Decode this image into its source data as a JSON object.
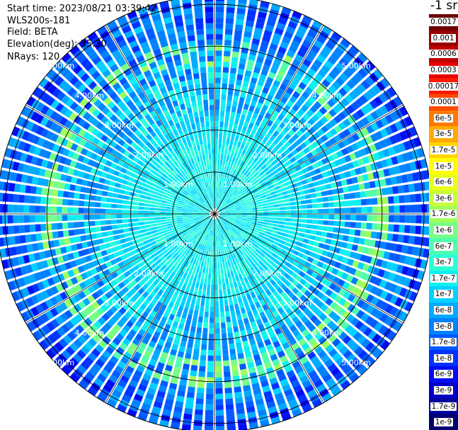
{
  "header": {
    "start_time": "Start time: 2023/08/21 03:39:42",
    "instrument": "WLS200s-181",
    "field": "Field: BETA",
    "elevation": "Elevation(deg): 35.30",
    "nrays": "NRays: 120"
  },
  "colorbar": {
    "unit": "-1 sr",
    "labels": [
      "0.0017",
      "0.001",
      "0.0006",
      "0.0003",
      "0.00017",
      "0.0001",
      "6e-5",
      "3e-5",
      "1.7e-5",
      "1e-5",
      "6e-6",
      "3e-6",
      "1.7e-6",
      "1e-6",
      "6e-7",
      "3e-7",
      "1.7e-7",
      "1e-7",
      "6e-8",
      "3e-8",
      "1.7e-8",
      "1e-8",
      "6e-9",
      "3e-9",
      "1.7e-9",
      "1e-9"
    ],
    "colors": [
      "#6e0000",
      "#980000",
      "#c00000",
      "#e80000",
      "#ff1a00",
      "#ff4a00",
      "#ff7a00",
      "#ffaa00",
      "#ffd400",
      "#ffff00",
      "#e8ff18",
      "#c8ff38",
      "#a0ff5e",
      "#78ff86",
      "#50ffae",
      "#2cffd6",
      "#10f0f0",
      "#00d2ff",
      "#00aaff",
      "#0082ff",
      "#005aff",
      "#0032ff",
      "#000cf4",
      "#0000c8",
      "#00009c",
      "#000070"
    ]
  },
  "chart_data": {
    "type": "ppi_polar",
    "title": "",
    "field": "BETA",
    "unit": "sr-1",
    "rays": 120,
    "elevation_deg": 35.3,
    "range_ring_labels_km": [
      "1.00km",
      "2.00km",
      "3.00km",
      "4.00km",
      "5.00km"
    ],
    "range_rings_km": [
      1,
      2,
      3,
      4,
      5
    ],
    "max_range_km": 5.2,
    "radial_lines_deg": [
      0,
      30,
      60,
      90,
      120,
      150,
      180,
      210,
      240,
      270,
      300,
      330
    ],
    "ring_label_bearings_deg": [
      -45,
      45,
      135,
      225
    ],
    "scale": "log",
    "color_range": [
      1e-09,
      0.0017
    ],
    "dominant_value_by_range_km": [
      {
        "range_km": 0.5,
        "value": 1.7e-07
      },
      {
        "range_km": 1.5,
        "value": 1.7e-07
      },
      {
        "range_km": 2.5,
        "value": 1e-07
      },
      {
        "range_km": 3.5,
        "value": 6e-08
      },
      {
        "range_km": 4.5,
        "value": 3e-08
      },
      {
        "range_km": 5.0,
        "value": 1.7e-08
      }
    ],
    "enhanced_band": {
      "range_km": [
        3.5,
        4.1
      ],
      "value": 1e-06
    }
  }
}
